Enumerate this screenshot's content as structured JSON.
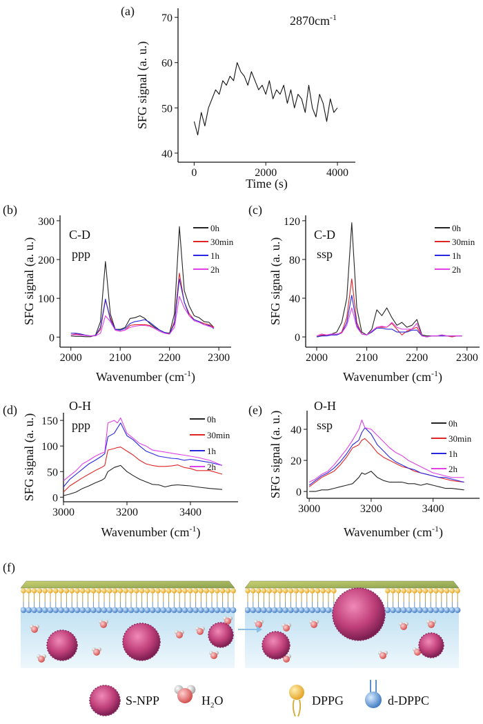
{
  "colors": {
    "0h": "#222222",
    "30min": "#e02424",
    "1h": "#2626e0",
    "2h": "#e040e6"
  },
  "chart_data": [
    {
      "id": "a",
      "panel_label": "(a)",
      "type": "line",
      "annotation": "2870cm",
      "annotation_sup": "-1",
      "xlabel": "Time (s)",
      "ylabel": "SFG signal (a. u.)",
      "xticks": [
        0,
        2000,
        4000
      ],
      "yticks": [
        40,
        50,
        60,
        70
      ],
      "xlim": [
        -450,
        4500
      ],
      "ylim": [
        38,
        72
      ],
      "x": [
        0,
        100,
        200,
        300,
        400,
        500,
        600,
        700,
        800,
        900,
        1000,
        1100,
        1200,
        1300,
        1400,
        1500,
        1600,
        1700,
        1800,
        1900,
        2000,
        2100,
        2200,
        2300,
        2400,
        2500,
        2600,
        2700,
        2800,
        2900,
        3000,
        3100,
        3200,
        3300,
        3400,
        3500,
        3600,
        3700,
        3800,
        3900,
        4000
      ],
      "series": [
        {
          "color": "#111111",
          "values": [
            47,
            44,
            49,
            46,
            50,
            52,
            54,
            53,
            56,
            55,
            57,
            56,
            60,
            58,
            57,
            55,
            58,
            56,
            54,
            55,
            53,
            56,
            52,
            54,
            53,
            55,
            51,
            54,
            50,
            53,
            52,
            49,
            55,
            50,
            48,
            53,
            51,
            47,
            52,
            49,
            50
          ]
        }
      ]
    },
    {
      "id": "b",
      "panel_label": "(b)",
      "type": "line",
      "annotation": [
        "C-D",
        "ppp"
      ],
      "xlabel": "Wavenumber (cm",
      "xlabel_sup": "-1",
      "xlabel_end": ")",
      "ylabel": "SFG signal (a. u.)",
      "xticks": [
        2000,
        2100,
        2200,
        2300
      ],
      "yticks": [
        0,
        100,
        200,
        300
      ],
      "xlim": [
        1978,
        2325
      ],
      "ylim": [
        -26,
        314
      ],
      "legend_position": "top-right",
      "x": [
        2000,
        2010,
        2020,
        2030,
        2040,
        2050,
        2060,
        2070,
        2080,
        2090,
        2100,
        2110,
        2120,
        2130,
        2140,
        2150,
        2160,
        2170,
        2180,
        2190,
        2200,
        2210,
        2220,
        2230,
        2240,
        2250,
        2260,
        2270,
        2280,
        2290
      ],
      "series": [
        {
          "name": "0h",
          "values": [
            3,
            2,
            2,
            1,
            1,
            5,
            40,
            195,
            60,
            20,
            20,
            25,
            48,
            50,
            55,
            48,
            35,
            25,
            18,
            12,
            10,
            60,
            285,
            120,
            80,
            55,
            50,
            40,
            38,
            25
          ]
        },
        {
          "name": "30min",
          "values": [
            6,
            8,
            6,
            4,
            3,
            4,
            20,
            95,
            50,
            18,
            15,
            18,
            30,
            32,
            32,
            32,
            30,
            22,
            15,
            10,
            8,
            40,
            165,
            90,
            60,
            45,
            40,
            35,
            32,
            25
          ]
        },
        {
          "name": "1h",
          "values": [
            10,
            10,
            8,
            5,
            3,
            4,
            25,
            98,
            45,
            20,
            18,
            22,
            35,
            40,
            42,
            45,
            38,
            28,
            18,
            12,
            8,
            35,
            150,
            90,
            55,
            45,
            40,
            32,
            30,
            22
          ]
        },
        {
          "name": "2h",
          "values": [
            6,
            6,
            5,
            4,
            3,
            3,
            10,
            55,
            40,
            18,
            15,
            18,
            25,
            28,
            30,
            30,
            28,
            22,
            15,
            10,
            8,
            25,
            105,
            75,
            55,
            42,
            38,
            32,
            28,
            24
          ]
        }
      ]
    },
    {
      "id": "c",
      "panel_label": "(c)",
      "type": "line",
      "annotation": [
        "C-D",
        "ssp"
      ],
      "xlabel": "Wavenumber (cm",
      "xlabel_sup": "-1",
      "xlabel_end": ")",
      "ylabel": "SFG signal (a. u.)",
      "xticks": [
        2000,
        2100,
        2200,
        2300
      ],
      "yticks": [
        0,
        40,
        80,
        120
      ],
      "xlim": [
        1978,
        2325
      ],
      "ylim": [
        -10.6,
        125.6
      ],
      "legend_position": "top-right",
      "x": [
        2000,
        2010,
        2020,
        2030,
        2040,
        2050,
        2060,
        2070,
        2080,
        2090,
        2100,
        2110,
        2120,
        2130,
        2140,
        2150,
        2160,
        2170,
        2180,
        2190,
        2200,
        2210,
        2220,
        2230,
        2240,
        2250,
        2260,
        2270,
        2280,
        2290
      ],
      "series": [
        {
          "name": "0h",
          "values": [
            0,
            1,
            2,
            3,
            5,
            15,
            40,
            118,
            30,
            5,
            2,
            8,
            28,
            22,
            30,
            20,
            12,
            15,
            10,
            12,
            18,
            2,
            1,
            1,
            1,
            2,
            1,
            1,
            1,
            1
          ]
        },
        {
          "name": "30min",
          "values": [
            0,
            2,
            2,
            2,
            2,
            5,
            20,
            60,
            15,
            3,
            2,
            5,
            10,
            10,
            10,
            14,
            8,
            2,
            6,
            8,
            10,
            1,
            0,
            1,
            1,
            1,
            1,
            0,
            1,
            1
          ]
        },
        {
          "name": "1h",
          "values": [
            0,
            1,
            1,
            2,
            2,
            4,
            15,
            43,
            12,
            3,
            2,
            5,
            9,
            9,
            8,
            8,
            5,
            5,
            5,
            7,
            7,
            1,
            0,
            1,
            1,
            1,
            1,
            1,
            1,
            1
          ]
        },
        {
          "name": "2h",
          "values": [
            1,
            3,
            2,
            3,
            3,
            4,
            12,
            30,
            10,
            3,
            2,
            6,
            10,
            11,
            10,
            15,
            10,
            8,
            8,
            8,
            14,
            1,
            0,
            1,
            1,
            2,
            1,
            1,
            1,
            1
          ]
        }
      ]
    },
    {
      "id": "d",
      "panel_label": "(d)",
      "type": "line",
      "annotation": [
        "O-H",
        "ppp"
      ],
      "xlabel": "Wavenumber (cm",
      "xlabel_sup": "-1",
      "xlabel_end": ")",
      "ylabel": "SFG signal (a. u.)",
      "xticks": [
        3000,
        3200,
        3400
      ],
      "yticks": [
        0,
        50,
        100,
        150
      ],
      "xlim": [
        3000,
        3550
      ],
      "ylim": [
        -9,
        165
      ],
      "legend_position": "top-right",
      "x": [
        3000,
        3020,
        3040,
        3060,
        3080,
        3100,
        3120,
        3130,
        3140,
        3160,
        3170,
        3180,
        3200,
        3220,
        3240,
        3260,
        3280,
        3300,
        3320,
        3340,
        3360,
        3380,
        3400,
        3420,
        3460,
        3500
      ],
      "series": [
        {
          "name": "0h",
          "values": [
            3,
            6,
            10,
            17,
            22,
            28,
            33,
            37,
            50,
            58,
            60,
            62,
            50,
            42,
            35,
            30,
            25,
            24,
            20,
            23,
            24,
            23,
            22,
            20,
            17,
            15
          ]
        },
        {
          "name": "30min",
          "values": [
            10,
            22,
            30,
            38,
            45,
            52,
            58,
            62,
            92,
            95,
            97,
            98,
            90,
            82,
            72,
            65,
            62,
            60,
            60,
            61,
            63,
            58,
            56,
            52,
            52,
            45
          ]
        },
        {
          "name": "1h",
          "values": [
            20,
            35,
            45,
            55,
            65,
            72,
            80,
            85,
            118,
            125,
            135,
            145,
            120,
            112,
            100,
            90,
            85,
            80,
            78,
            76,
            75,
            72,
            74,
            72,
            68,
            62
          ]
        },
        {
          "name": "2h",
          "values": [
            32,
            42,
            52,
            65,
            72,
            80,
            86,
            88,
            145,
            150,
            145,
            155,
            125,
            115,
            105,
            100,
            92,
            90,
            88,
            86,
            84,
            82,
            80,
            78,
            72,
            62
          ]
        }
      ]
    },
    {
      "id": "e",
      "panel_label": "(e)",
      "type": "line",
      "annotation": [
        "O-H",
        "ssp"
      ],
      "xlabel": "Wavenumber (cm",
      "xlabel_sup": "-1",
      "xlabel_end": ")",
      "ylabel": "SFG signal (a. u.)",
      "xticks": [
        3000,
        3200,
        3400
      ],
      "yticks": [
        0,
        20,
        40
      ],
      "xlim": [
        2993,
        3550
      ],
      "ylim": [
        -4.4,
        52
      ],
      "legend_position": "top-right",
      "x": [
        3000,
        3020,
        3040,
        3060,
        3080,
        3100,
        3120,
        3140,
        3160,
        3170,
        3180,
        3200,
        3220,
        3240,
        3260,
        3280,
        3300,
        3320,
        3340,
        3360,
        3380,
        3400,
        3420,
        3440,
        3460,
        3500
      ],
      "series": [
        {
          "name": "0h",
          "values": [
            0,
            0,
            1,
            1,
            2,
            3,
            4,
            5,
            9,
            12,
            11,
            13,
            9,
            7,
            6,
            6,
            6,
            5,
            5,
            4,
            5,
            4,
            3,
            2,
            2,
            1
          ]
        },
        {
          "name": "30min",
          "values": [
            3,
            6,
            9,
            11,
            13,
            17,
            22,
            28,
            30,
            33,
            34,
            30,
            25,
            22,
            20,
            18,
            16,
            15,
            13,
            12,
            11,
            10,
            9,
            8,
            7,
            6
          ]
        },
        {
          "name": "1h",
          "values": [
            4,
            7,
            10,
            12,
            15,
            19,
            24,
            30,
            33,
            38,
            41,
            37,
            30,
            26,
            22,
            19,
            17,
            15,
            14,
            12,
            11,
            10,
            9,
            9,
            8,
            6
          ]
        },
        {
          "name": "2h",
          "values": [
            6,
            8,
            11,
            13,
            17,
            22,
            27,
            33,
            40,
            46,
            41,
            40,
            36,
            32,
            28,
            25,
            23,
            20,
            18,
            16,
            14,
            12,
            11,
            10,
            9,
            9
          ]
        }
      ]
    }
  ],
  "diagram": {
    "panel_label": "(f)",
    "legend": [
      {
        "label": "S-NPP"
      },
      {
        "label": "H",
        "sub": "2",
        "label_end": "O"
      },
      {
        "label": "DPPG"
      },
      {
        "label": "d-DPPC"
      }
    ],
    "colors": {
      "nanoparticle": "#c0407a",
      "dppg_head": "#f2b63c",
      "dppc_head": "#5a8fd0",
      "water_bg": "#d6ecf6",
      "oxygen": "#e46a6a"
    }
  }
}
